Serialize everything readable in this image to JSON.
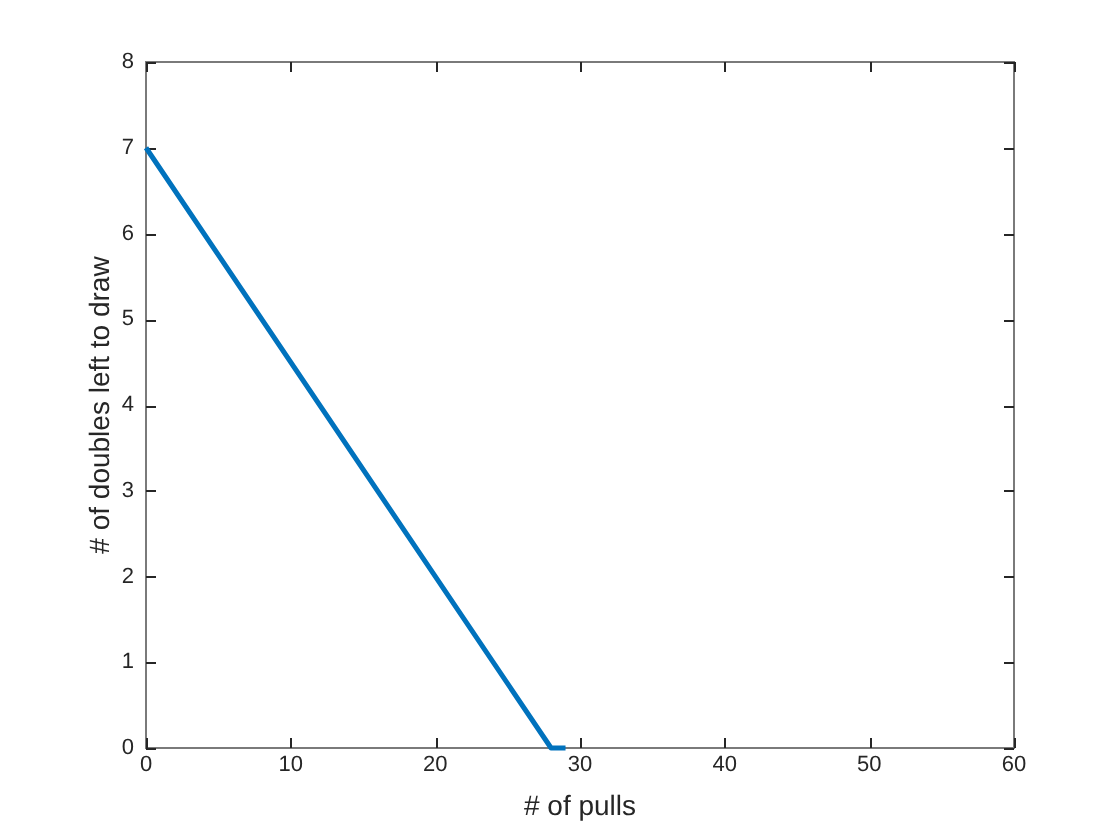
{
  "chart_data": {
    "type": "line",
    "xlabel": "# of pulls",
    "ylabel": "# of doubles left to draw",
    "x": [
      0,
      28,
      29
    ],
    "series": [
      {
        "color": "#0072bd",
        "values": [
          7,
          0,
          0
        ]
      }
    ],
    "xlim": [
      0,
      60
    ],
    "xticks": [
      0,
      10,
      20,
      30,
      40,
      50,
      60
    ],
    "ylim": [
      0,
      8
    ],
    "yticks": [
      0,
      1,
      2,
      3,
      4,
      5,
      6,
      7,
      8
    ],
    "marker": "none",
    "line_style": "solid"
  }
}
